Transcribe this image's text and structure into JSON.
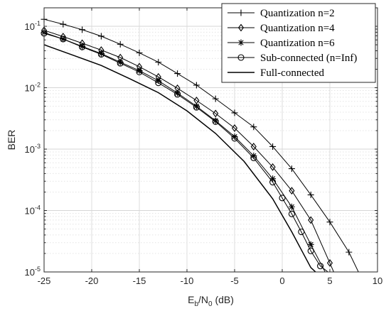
{
  "chart_data": {
    "type": "line",
    "title": "",
    "xlabel": {
      "base": "E",
      "sub1": "b",
      "mid": "/N",
      "sub2": "0",
      "unit": " (dB)"
    },
    "ylabel": "BER",
    "xlim": [
      -25,
      10
    ],
    "ylim": [
      1e-05,
      0.2
    ],
    "yscale": "log",
    "grid": true,
    "legend_position": "top-right",
    "x_ticks": [
      -25,
      -20,
      -15,
      -10,
      -5,
      0,
      5,
      10
    ],
    "x_tick_labels": [
      "-25",
      "-20",
      "-15",
      "-10",
      "-5",
      "0",
      "5",
      "10"
    ],
    "y_ticks": [
      {
        "exp": -1,
        "mant": "10",
        "value": 0.1
      },
      {
        "exp": -2,
        "mant": "10",
        "value": 0.01
      },
      {
        "exp": -3,
        "mant": "10",
        "value": 0.001
      },
      {
        "exp": -4,
        "mant": "10",
        "value": 0.0001
      },
      {
        "exp": -5,
        "mant": "10",
        "value": 1e-05
      }
    ],
    "series": [
      {
        "name": "Quantization n=2",
        "marker": "plus",
        "x": [
          -25,
          -23,
          -21,
          -19,
          -17,
          -15,
          -13,
          -11,
          -9,
          -7,
          -5,
          -3,
          -1,
          1,
          3,
          5,
          7,
          8
        ],
        "y": [
          0.13,
          0.108,
          0.088,
          0.069,
          0.051,
          0.037,
          0.026,
          0.017,
          0.011,
          0.0066,
          0.0039,
          0.0023,
          0.0011,
          0.00048,
          0.00018,
          6.5e-05,
          2.1e-05,
          1e-05
        ]
      },
      {
        "name": "Quantization n=4",
        "marker": "diamond",
        "x": [
          -25,
          -23,
          -21,
          -19,
          -17,
          -15,
          -13,
          -11,
          -9,
          -7,
          -5,
          -3,
          -1,
          1,
          3,
          5,
          5.4
        ],
        "y": [
          0.086,
          0.068,
          0.053,
          0.041,
          0.031,
          0.022,
          0.015,
          0.0098,
          0.0062,
          0.0038,
          0.0022,
          0.0011,
          0.00051,
          0.00021,
          7e-05,
          1.4e-05,
          1e-05
        ]
      },
      {
        "name": "Quantization n=6",
        "marker": "asterisk",
        "x": [
          -25,
          -23,
          -21,
          -19,
          -17,
          -15,
          -13,
          -11,
          -9,
          -7,
          -5,
          -3,
          -1,
          1,
          3,
          4.5
        ],
        "y": [
          0.079,
          0.062,
          0.047,
          0.036,
          0.026,
          0.019,
          0.013,
          0.0082,
          0.005,
          0.0029,
          0.0016,
          0.00078,
          0.00033,
          0.000115,
          2.8e-05,
          1e-05
        ]
      },
      {
        "name": "Sub-connected (n=Inf)",
        "marker": "circle",
        "x": [
          -25,
          -23,
          -21,
          -19,
          -17,
          -15,
          -13,
          -11,
          -9,
          -7,
          -5,
          -3,
          -1,
          0,
          1,
          2,
          3,
          4,
          4.8
        ],
        "y": [
          0.077,
          0.062,
          0.046,
          0.035,
          0.025,
          0.018,
          0.012,
          0.0078,
          0.0048,
          0.0028,
          0.0015,
          0.00072,
          0.00029,
          0.00016,
          8.8e-05,
          4.5e-05,
          2.2e-05,
          1.25e-05,
          1e-05
        ]
      },
      {
        "name": "Full-connected",
        "marker": "none",
        "x": [
          -25,
          -22,
          -19,
          -16,
          -13,
          -10,
          -7,
          -4,
          -1,
          1,
          2,
          3,
          3.5
        ],
        "y": [
          0.05,
          0.034,
          0.023,
          0.014,
          0.0083,
          0.0042,
          0.0018,
          0.00063,
          0.000155,
          4.5e-05,
          2.3e-05,
          1.18e-05,
          1e-05
        ]
      }
    ]
  }
}
